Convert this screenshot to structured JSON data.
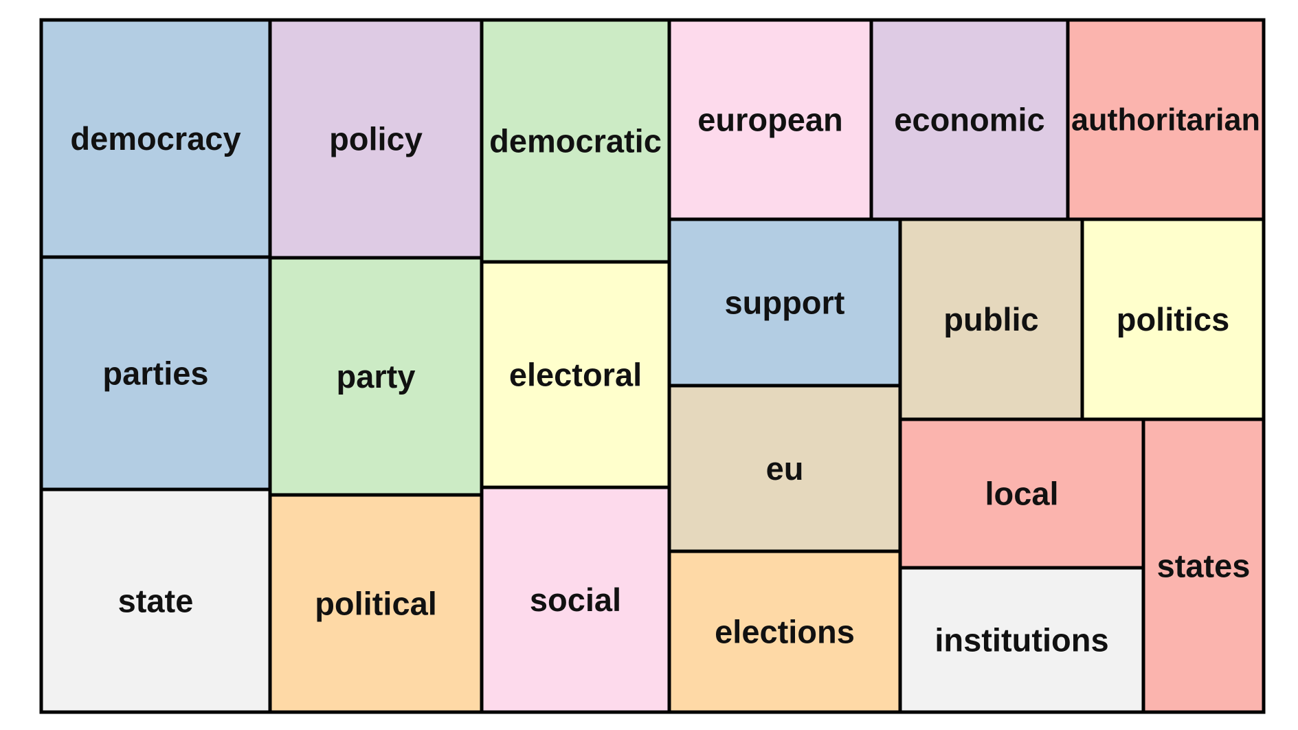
{
  "chart_data": {
    "type": "treemap",
    "title": "",
    "items": [
      {
        "label": "democracy",
        "color": "#b3cde3"
      },
      {
        "label": "parties",
        "color": "#b3cde3"
      },
      {
        "label": "state",
        "color": "#f2f2f2"
      },
      {
        "label": "policy",
        "color": "#decbe4"
      },
      {
        "label": "party",
        "color": "#ccebc5"
      },
      {
        "label": "political",
        "color": "#fed9a6"
      },
      {
        "label": "democratic",
        "color": "#ccebc5"
      },
      {
        "label": "electoral",
        "color": "#ffffcc"
      },
      {
        "label": "social",
        "color": "#fddaec"
      },
      {
        "label": "european",
        "color": "#fddaec"
      },
      {
        "label": "economic",
        "color": "#decbe4"
      },
      {
        "label": "authoritarian",
        "color": "#fbb4ae"
      },
      {
        "label": "support",
        "color": "#b3cde3"
      },
      {
        "label": "public",
        "color": "#e5d8bd"
      },
      {
        "label": "politics",
        "color": "#ffffcc"
      },
      {
        "label": "eu",
        "color": "#e5d8bd"
      },
      {
        "label": "elections",
        "color": "#fed9a6"
      },
      {
        "label": "local",
        "color": "#fbb4ae"
      },
      {
        "label": "institutions",
        "color": "#f2f2f2"
      },
      {
        "label": "states",
        "color": "#fbb4ae"
      }
    ]
  }
}
